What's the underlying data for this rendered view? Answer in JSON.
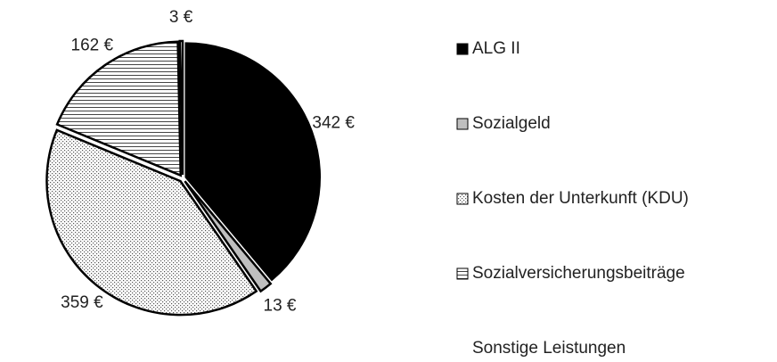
{
  "chart_data": {
    "type": "pie",
    "categories": [
      "ALG II",
      "Sozialgeld",
      "Kosten der Unterkunft (KDU)",
      "Sozialversicherungsbeiträge",
      "Sonstige Leistungen"
    ],
    "values": [
      342,
      13,
      359,
      162,
      3
    ],
    "value_labels": [
      "342 €",
      "13 €",
      "359 €",
      "162 €",
      "3 €"
    ],
    "fills": [
      "#000000",
      "#bfbfbf",
      "dots",
      "horizontal-lines",
      "#ffffff"
    ],
    "legend": "right"
  }
}
